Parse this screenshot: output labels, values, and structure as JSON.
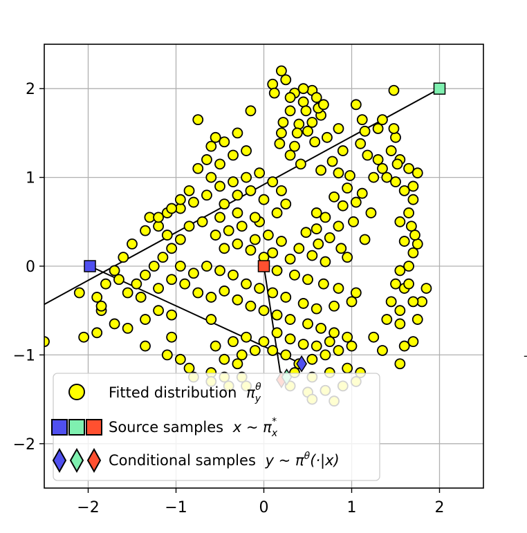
{
  "chart_data": {
    "type": "scatter",
    "title": "",
    "xlabel": "",
    "ylabel": "",
    "xlim": [
      -2.5,
      2.5
    ],
    "ylim": [
      -2.5,
      2.5
    ],
    "xticks": [
      -2,
      -1,
      0,
      1,
      2
    ],
    "yticks": [
      -2,
      -1,
      0,
      1,
      2
    ],
    "xtick_labels": [
      "−2",
      "−1",
      "0",
      "1",
      "2"
    ],
    "ytick_labels": [
      "−2",
      "−1",
      "0",
      "1",
      "2"
    ],
    "grid": true,
    "legend_position": "bottom-left",
    "colors": {
      "fitted": "#ffff00",
      "marker_edge": "#000000",
      "source_blue": "#5050f0",
      "source_green": "#7ff0b0",
      "source_red": "#ff5030",
      "grid": "#b0b0b0",
      "line": "#000000"
    },
    "series": [
      {
        "name": "Fitted distribution",
        "kind": "circle",
        "points": [
          [
            0.2,
            2.2
          ],
          [
            0.25,
            2.1
          ],
          [
            0.1,
            2.05
          ],
          [
            0.35,
            1.95
          ],
          [
            0.55,
            1.98
          ],
          [
            0.6,
            1.9
          ],
          [
            0.45,
            1.85
          ],
          [
            0.3,
            1.75
          ],
          [
            0.65,
            1.7
          ],
          [
            0.4,
            1.6
          ],
          [
            0.5,
            1.52
          ],
          [
            0.2,
            1.5
          ],
          [
            0.85,
            1.55
          ],
          [
            0.72,
            1.45
          ],
          [
            1.05,
            1.82
          ],
          [
            1.12,
            1.65
          ],
          [
            1.15,
            1.52
          ],
          [
            0.58,
            1.4
          ],
          [
            0.35,
            1.35
          ],
          [
            1.1,
            1.38
          ],
          [
            0.3,
            1.25
          ],
          [
            0.9,
            1.3
          ],
          [
            0.78,
            1.18
          ],
          [
            0.42,
            1.15
          ],
          [
            1.18,
            1.25
          ],
          [
            1.3,
            1.2
          ],
          [
            1.35,
            1.1
          ],
          [
            1.25,
            1.0
          ],
          [
            0.65,
            1.08
          ],
          [
            0.85,
            1.05
          ],
          [
            0.98,
            1.02
          ],
          [
            0.95,
            0.88
          ],
          [
            1.12,
            0.82
          ],
          [
            0.8,
            0.78
          ],
          [
            1.05,
            0.72
          ],
          [
            0.6,
            0.6
          ],
          [
            0.9,
            0.68
          ],
          [
            1.22,
            0.6
          ],
          [
            1.02,
            0.5
          ],
          [
            0.7,
            0.55
          ],
          [
            0.85,
            0.45
          ],
          [
            0.6,
            0.42
          ],
          [
            0.48,
            0.38
          ],
          [
            0.75,
            0.32
          ],
          [
            0.62,
            0.25
          ],
          [
            0.88,
            0.2
          ],
          [
            1.15,
            0.3
          ],
          [
            0.95,
            0.1
          ],
          [
            0.7,
            0.05
          ],
          [
            0.55,
            0.12
          ],
          [
            0.4,
            0.2
          ],
          [
            0.3,
            0.08
          ],
          [
            0.2,
            0.28
          ],
          [
            0.1,
            0.15
          ],
          [
            0.05,
            0.35
          ],
          [
            -0.05,
            0.5
          ],
          [
            -0.1,
            0.3
          ],
          [
            0.0,
            0.1
          ],
          [
            0.15,
            -0.05
          ],
          [
            0.35,
            -0.1
          ],
          [
            0.5,
            -0.15
          ],
          [
            0.68,
            -0.2
          ],
          [
            0.85,
            -0.25
          ],
          [
            1.05,
            -0.3
          ],
          [
            1.0,
            -0.4
          ],
          [
            0.8,
            -0.45
          ],
          [
            0.6,
            -0.48
          ],
          [
            0.45,
            -0.42
          ],
          [
            0.25,
            -0.35
          ],
          [
            0.1,
            -0.3
          ],
          [
            -0.05,
            -0.25
          ],
          [
            -0.2,
            -0.2
          ],
          [
            -0.35,
            -0.1
          ],
          [
            -0.5,
            -0.05
          ],
          [
            -0.65,
            0.0
          ],
          [
            -0.8,
            -0.08
          ],
          [
            -0.9,
            -0.2
          ],
          [
            -0.75,
            -0.3
          ],
          [
            -0.6,
            -0.35
          ],
          [
            -0.45,
            -0.28
          ],
          [
            -0.3,
            -0.38
          ],
          [
            -0.15,
            -0.45
          ],
          [
            0.0,
            -0.5
          ],
          [
            0.15,
            -0.55
          ],
          [
            0.3,
            -0.6
          ],
          [
            0.5,
            -0.65
          ],
          [
            0.65,
            -0.7
          ],
          [
            0.8,
            -0.75
          ],
          [
            0.95,
            -0.8
          ],
          [
            1.0,
            -0.9
          ],
          [
            0.85,
            -0.95
          ],
          [
            0.7,
            -1.0
          ],
          [
            0.55,
            -1.05
          ],
          [
            0.4,
            -1.1
          ],
          [
            0.25,
            -1.0
          ],
          [
            0.1,
            -0.95
          ],
          [
            0.0,
            -0.85
          ],
          [
            0.15,
            -0.75
          ],
          [
            0.3,
            -0.82
          ],
          [
            0.45,
            -0.88
          ],
          [
            0.6,
            -0.9
          ],
          [
            0.75,
            -0.85
          ],
          [
            0.35,
            -1.2
          ],
          [
            0.55,
            -1.25
          ],
          [
            0.75,
            -1.2
          ],
          [
            0.95,
            -1.15
          ],
          [
            1.1,
            -1.2
          ],
          [
            1.05,
            -1.3
          ],
          [
            0.9,
            -1.35
          ],
          [
            0.7,
            -1.4
          ],
          [
            0.5,
            -1.42
          ],
          [
            0.3,
            -1.35
          ],
          [
            0.55,
            -1.5
          ],
          [
            0.8,
            -1.52
          ],
          [
            -0.8,
            -1.25
          ],
          [
            -0.6,
            -1.2
          ],
          [
            -0.45,
            -1.25
          ],
          [
            -0.25,
            -1.25
          ],
          [
            -0.6,
            -1.3
          ],
          [
            -0.4,
            -1.35
          ],
          [
            -0.2,
            -1.35
          ],
          [
            -0.3,
            -1.1
          ],
          [
            -0.45,
            -1.05
          ],
          [
            -0.6,
            -0.6
          ],
          [
            -0.55,
            -0.9
          ],
          [
            -0.35,
            -0.85
          ],
          [
            -0.2,
            -0.8
          ],
          [
            -0.1,
            -0.95
          ],
          [
            -0.25,
            -1.0
          ],
          [
            -0.45,
            0.2
          ],
          [
            -0.3,
            0.25
          ],
          [
            -0.15,
            0.18
          ],
          [
            -0.55,
            0.35
          ],
          [
            -0.4,
            0.4
          ],
          [
            -0.25,
            0.45
          ],
          [
            -0.1,
            0.55
          ],
          [
            -0.3,
            0.6
          ],
          [
            -0.5,
            0.55
          ],
          [
            -0.7,
            0.5
          ],
          [
            -0.85,
            0.45
          ],
          [
            -0.95,
            0.3
          ],
          [
            -1.05,
            0.2
          ],
          [
            -1.15,
            0.1
          ],
          [
            -1.25,
            0.0
          ],
          [
            -1.35,
            -0.1
          ],
          [
            -1.45,
            -0.2
          ],
          [
            -1.55,
            -0.3
          ],
          [
            -1.4,
            -0.35
          ],
          [
            -1.2,
            -0.25
          ],
          [
            -1.05,
            -0.15
          ],
          [
            -0.95,
            0.0
          ],
          [
            -1.1,
            0.35
          ],
          [
            -1.2,
            0.45
          ],
          [
            -1.3,
            0.55
          ],
          [
            -1.1,
            0.6
          ],
          [
            -0.95,
            0.65
          ],
          [
            -0.8,
            0.72
          ],
          [
            -0.65,
            0.8
          ],
          [
            -0.5,
            0.9
          ],
          [
            -0.35,
            0.95
          ],
          [
            -0.2,
            1.0
          ],
          [
            -0.05,
            1.05
          ],
          [
            0.1,
            0.95
          ],
          [
            0.2,
            0.85
          ],
          [
            0.25,
            0.7
          ],
          [
            0.15,
            0.6
          ],
          [
            0.0,
            0.75
          ],
          [
            -0.15,
            0.85
          ],
          [
            -0.3,
            0.8
          ],
          [
            -0.45,
            0.7
          ],
          [
            -0.6,
            1.0
          ],
          [
            -0.75,
            1.1
          ],
          [
            -0.65,
            1.2
          ],
          [
            -0.5,
            1.15
          ],
          [
            -0.35,
            1.25
          ],
          [
            -0.2,
            1.3
          ],
          [
            -0.6,
            1.35
          ],
          [
            -0.45,
            1.4
          ],
          [
            -0.3,
            1.5
          ],
          [
            -0.15,
            1.75
          ],
          [
            -0.55,
            1.45
          ],
          [
            -0.75,
            1.65
          ],
          [
            -0.85,
            0.85
          ],
          [
            -0.95,
            0.75
          ],
          [
            -1.05,
            0.65
          ],
          [
            -1.2,
            0.55
          ],
          [
            -1.35,
            0.4
          ],
          [
            -1.5,
            0.25
          ],
          [
            -1.6,
            0.1
          ],
          [
            -1.7,
            -0.05
          ],
          [
            -1.8,
            -0.2
          ],
          [
            -1.9,
            -0.35
          ],
          [
            -1.85,
            -0.5
          ],
          [
            -1.7,
            -0.65
          ],
          [
            -1.55,
            -0.7
          ],
          [
            -1.35,
            -0.6
          ],
          [
            -1.2,
            -0.5
          ],
          [
            -1.05,
            -0.55
          ],
          [
            -1.35,
            -0.9
          ],
          [
            -1.1,
            -1.0
          ],
          [
            -1.05,
            -0.8
          ],
          [
            -0.95,
            -1.05
          ],
          [
            -0.85,
            -1.15
          ],
          [
            -1.9,
            -0.75
          ],
          [
            -2.05,
            -0.8
          ],
          [
            -2.5,
            -0.85
          ],
          [
            -2.1,
            -0.3
          ],
          [
            -1.65,
            -0.15
          ],
          [
            -1.85,
            -0.45
          ],
          [
            1.25,
            -0.8
          ],
          [
            1.35,
            -0.95
          ],
          [
            1.4,
            -0.6
          ],
          [
            1.45,
            -0.4
          ],
          [
            1.5,
            -0.2
          ],
          [
            1.55,
            -0.05
          ],
          [
            1.6,
            -0.25
          ],
          [
            1.55,
            -0.5
          ],
          [
            1.55,
            -0.65
          ],
          [
            1.6,
            -0.9
          ],
          [
            1.55,
            -1.1
          ],
          [
            1.7,
            -0.85
          ],
          [
            1.75,
            -0.6
          ],
          [
            1.8,
            -0.4
          ],
          [
            1.85,
            -0.25
          ],
          [
            1.7,
            -0.4
          ],
          [
            1.65,
            -0.2
          ],
          [
            1.65,
            0.0
          ],
          [
            1.7,
            0.15
          ],
          [
            1.75,
            0.25
          ],
          [
            1.6,
            0.28
          ],
          [
            1.55,
            0.5
          ],
          [
            1.65,
            0.6
          ],
          [
            1.7,
            0.75
          ],
          [
            1.7,
            0.9
          ],
          [
            1.75,
            1.05
          ],
          [
            1.65,
            1.1
          ],
          [
            1.55,
            1.2
          ],
          [
            1.45,
            1.3
          ],
          [
            1.5,
            1.45
          ],
          [
            1.48,
            1.55
          ],
          [
            1.35,
            1.65
          ],
          [
            1.3,
            1.55
          ],
          [
            1.4,
            1.0
          ],
          [
            1.5,
            0.95
          ],
          [
            1.6,
            0.85
          ],
          [
            1.68,
            0.45
          ],
          [
            1.52,
            1.15
          ],
          [
            1.72,
            0.35
          ],
          [
            1.48,
            1.98
          ],
          [
            0.62,
            1.78
          ],
          [
            0.45,
            2.0
          ],
          [
            0.12,
            1.95
          ],
          [
            0.3,
            1.9
          ],
          [
            0.38,
            1.5
          ],
          [
            0.55,
            1.62
          ],
          [
            0.68,
            1.82
          ],
          [
            0.22,
            1.62
          ],
          [
            0.48,
            1.75
          ],
          [
            0.18,
            1.38
          ]
        ]
      },
      {
        "name": "Source samples",
        "kind": "square",
        "points": [
          [
            -1.98,
            0.0,
            "blue"
          ],
          [
            2.0,
            2.0,
            "green"
          ],
          [
            0.0,
            0.0,
            "red"
          ]
        ]
      },
      {
        "name": "Conditional samples",
        "kind": "diamond",
        "points": [
          [
            0.43,
            -1.1,
            "blue"
          ],
          [
            0.26,
            -1.25,
            "green"
          ],
          [
            0.2,
            -1.28,
            "red"
          ]
        ]
      }
    ],
    "lines": [
      {
        "from": [
          -2.5,
          -0.43
        ],
        "to": [
          2.0,
          2.0
        ]
      },
      {
        "from": [
          -1.98,
          0.0
        ],
        "to": [
          0.43,
          -1.1
        ]
      },
      {
        "from": [
          0.0,
          0.0
        ],
        "to": [
          0.2,
          -1.28
        ]
      }
    ],
    "legend": {
      "fitted_label": "Fitted distribution",
      "fitted_math": "π",
      "fitted_math_sub": "y",
      "fitted_math_sup": "θ",
      "source_label": "Source samples",
      "source_math": "x ~ π",
      "source_math_sub": "x",
      "source_math_sup": "*",
      "conditional_label": "Conditional samples",
      "conditional_math": "y ~ π",
      "conditional_math_sup": "θ",
      "conditional_math_tail": "(·|x)"
    }
  }
}
